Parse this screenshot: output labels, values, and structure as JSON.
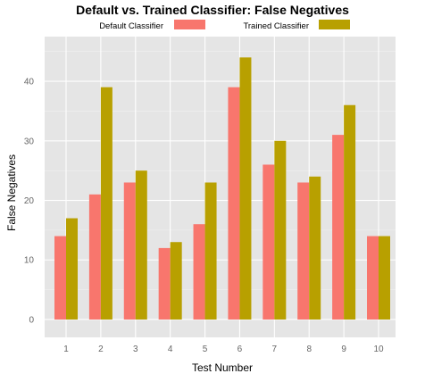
{
  "chart_data": {
    "type": "bar",
    "title": "Default vs. Trained Classifier: False Negatives",
    "xlabel": "Test Number",
    "ylabel": "False Negatives",
    "categories": [
      "1",
      "2",
      "3",
      "4",
      "5",
      "6",
      "7",
      "8",
      "9",
      "10"
    ],
    "series": [
      {
        "name": "Default Classifier",
        "color": "#F8766D",
        "values": [
          14,
          21,
          23,
          12,
          16,
          39,
          26,
          23,
          31,
          14
        ]
      },
      {
        "name": "Trained Classifier",
        "color": "#B8A000",
        "values": [
          17,
          39,
          25,
          13,
          23,
          44,
          30,
          24,
          36,
          14
        ]
      }
    ],
    "yticks": [
      0,
      10,
      20,
      30,
      40
    ],
    "ylim": [
      -3,
      47.5
    ],
    "grid": true,
    "panel_background": "#E5E5E5",
    "legend_position": "top"
  }
}
